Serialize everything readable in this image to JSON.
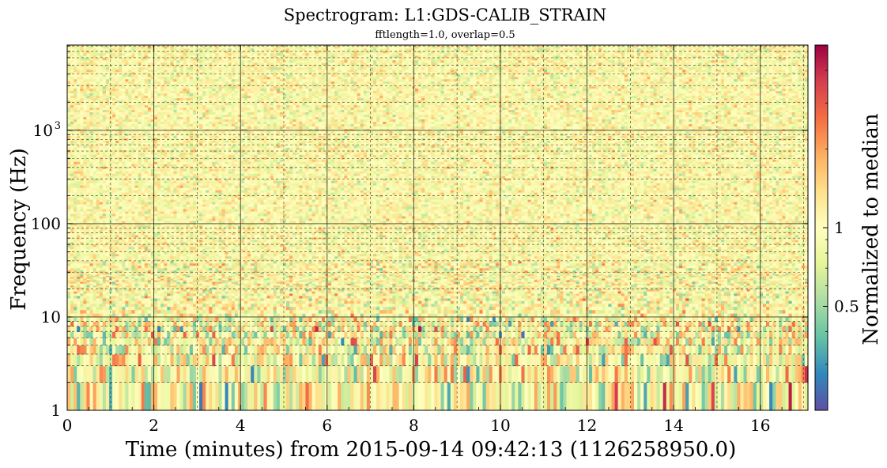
{
  "chart_data": {
    "type": "heatmap",
    "title": "Spectrogram: L1:GDS-CALIB_STRAIN",
    "subtitle": "fftlength=1.0, overlap=0.5",
    "xlabel": "Time (minutes) from 2015-09-14 09:42:13 (1126258950.0)",
    "ylabel": "Frequency (Hz)",
    "x_range": [
      0,
      17.1
    ],
    "x_ticks": [
      0,
      2,
      4,
      6,
      8,
      10,
      12,
      14,
      16
    ],
    "x_ticklabels": [
      "0",
      "2",
      "4",
      "6",
      "8",
      "10",
      "12",
      "14",
      "16"
    ],
    "y_scale": "log",
    "y_range": [
      1,
      8192
    ],
    "y_ticks": [
      1,
      10,
      100,
      1000
    ],
    "y_ticklabels": [
      "1",
      "10",
      "100",
      "10^3"
    ],
    "grid": true,
    "colormap": "Spectral_r",
    "colorbar": {
      "label": "Normalized to median",
      "scale": "log",
      "range": [
        0.2,
        5
      ],
      "ticks": [
        0.5,
        1
      ],
      "ticklabels": [
        "0.5",
        "1"
      ]
    },
    "colors": {
      "cmap_stops": [
        "#5e4fa2",
        "#3288bd",
        "#66c2a5",
        "#abdda4",
        "#e6f598",
        "#ffffbf",
        "#fee08b",
        "#fdae61",
        "#f46d43",
        "#d53e4f",
        "#9e0142"
      ],
      "grid": "#1a1a1a"
    }
  }
}
